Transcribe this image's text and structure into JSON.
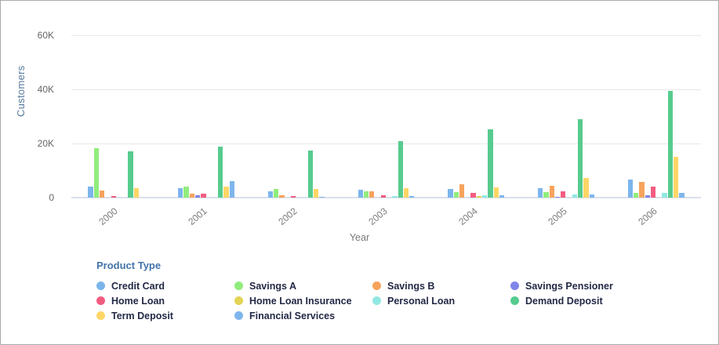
{
  "chart_data": {
    "type": "bar",
    "title": "",
    "xlabel": "Year",
    "ylabel": "Customers",
    "legend_title": "Product Type",
    "legend_position": "bottom",
    "grid": true,
    "ylim": [
      0,
      60000
    ],
    "yticks": [
      {
        "label": "0",
        "value": 0
      },
      {
        "label": "20K",
        "value": 20000
      },
      {
        "label": "40K",
        "value": 40000
      },
      {
        "label": "60K",
        "value": 60000
      }
    ],
    "categories": [
      "2000",
      "2001",
      "2002",
      "2003",
      "2004",
      "2005",
      "2006"
    ],
    "series": [
      {
        "name": "Credit Card",
        "color": "#7cb5ec",
        "values": [
          4100,
          3500,
          2400,
          2900,
          3100,
          3600,
          6800
        ]
      },
      {
        "name": "Savings A",
        "color": "#90ed7d",
        "values": [
          18200,
          4200,
          3100,
          2300,
          1900,
          1900,
          1700
        ]
      },
      {
        "name": "Savings B",
        "color": "#f7a35c",
        "values": [
          2500,
          1400,
          1000,
          2400,
          4800,
          4300,
          5900
        ]
      },
      {
        "name": "Savings Pensioner",
        "color": "#8085e9",
        "values": [
          0,
          800,
          0,
          0,
          0,
          300,
          900
        ]
      },
      {
        "name": "Home Loan",
        "color": "#f15c80",
        "values": [
          500,
          1500,
          700,
          1000,
          1700,
          2400,
          4100
        ]
      },
      {
        "name": "Home Loan Insurance",
        "color": "#e4d354",
        "values": [
          0,
          0,
          0,
          0,
          500,
          0,
          0
        ]
      },
      {
        "name": "Personal Loan",
        "color": "#91e8e1",
        "values": [
          0,
          0,
          0,
          500,
          800,
          1300,
          1700
        ]
      },
      {
        "name": "Demand Deposit",
        "color": "#57cb8e",
        "values": [
          17100,
          18800,
          17300,
          20800,
          25200,
          28900,
          39500
        ]
      },
      {
        "name": "Term Deposit",
        "color": "#ffd666",
        "values": [
          3500,
          4100,
          3200,
          3400,
          3900,
          7200,
          15200
        ]
      },
      {
        "name": "Financial Services",
        "color": "#7eb6ec",
        "values": [
          0,
          6100,
          400,
          500,
          800,
          1100,
          1800
        ]
      }
    ]
  }
}
